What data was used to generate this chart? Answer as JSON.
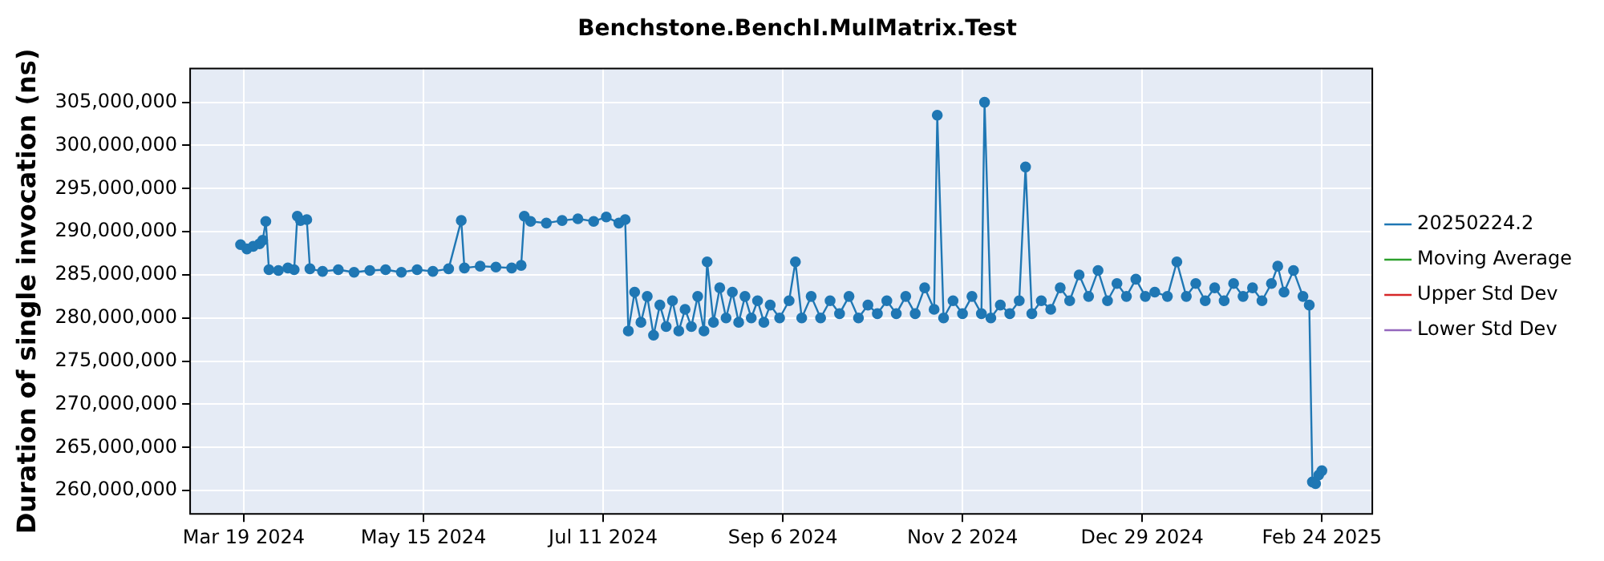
{
  "chart_data": {
    "type": "line",
    "title": "Benchstone.BenchI.MulMatrix.Test",
    "ylabel": "Duration of single invocation (ns)",
    "xlim": [
      "2024-03-02",
      "2025-03-12"
    ],
    "xticks": [
      {
        "value": "2024-03-19",
        "label": "Mar 19 2024"
      },
      {
        "value": "2024-05-15",
        "label": "May 15 2024"
      },
      {
        "value": "2024-07-11",
        "label": "Jul 11 2024"
      },
      {
        "value": "2024-09-06",
        "label": "Sep 6 2024"
      },
      {
        "value": "2024-11-02",
        "label": "Nov 2 2024"
      },
      {
        "value": "2024-12-29",
        "label": "Dec 29 2024"
      },
      {
        "value": "2025-02-24",
        "label": "Feb 24 2025"
      }
    ],
    "ylim": [
      257300000,
      308900000
    ],
    "yticks": [
      {
        "value": 260000000,
        "label": "260,000,000"
      },
      {
        "value": 265000000,
        "label": "265,000,000"
      },
      {
        "value": 270000000,
        "label": "270,000,000"
      },
      {
        "value": 275000000,
        "label": "275,000,000"
      },
      {
        "value": 280000000,
        "label": "280,000,000"
      },
      {
        "value": 285000000,
        "label": "285,000,000"
      },
      {
        "value": 290000000,
        "label": "290,000,000"
      },
      {
        "value": 295000000,
        "label": "295,000,000"
      },
      {
        "value": 300000000,
        "label": "300,000,000"
      },
      {
        "value": 305000000,
        "label": "305,000,000"
      }
    ],
    "grid": true,
    "legend": "right",
    "marker": "circle",
    "line_style": "solid",
    "series": [
      {
        "name": "20250224.2",
        "color": "#1f77b4",
        "x": [
          "2024-03-18",
          "2024-03-20",
          "2024-03-22",
          "2024-03-24",
          "2024-03-25",
          "2024-03-26",
          "2024-03-27",
          "2024-03-30",
          "2024-04-02",
          "2024-04-04",
          "2024-04-05",
          "2024-04-06",
          "2024-04-08",
          "2024-04-09",
          "2024-04-13",
          "2024-04-18",
          "2024-04-23",
          "2024-04-28",
          "2024-05-03",
          "2024-05-08",
          "2024-05-13",
          "2024-05-18",
          "2024-05-23",
          "2024-05-27",
          "2024-05-28",
          "2024-06-02",
          "2024-06-07",
          "2024-06-12",
          "2024-06-15",
          "2024-06-16",
          "2024-06-18",
          "2024-06-23",
          "2024-06-28",
          "2024-07-03",
          "2024-07-08",
          "2024-07-12",
          "2024-07-16",
          "2024-07-18",
          "2024-07-19",
          "2024-07-21",
          "2024-07-23",
          "2024-07-25",
          "2024-07-27",
          "2024-07-29",
          "2024-07-31",
          "2024-08-02",
          "2024-08-04",
          "2024-08-06",
          "2024-08-08",
          "2024-08-10",
          "2024-08-12",
          "2024-08-13",
          "2024-08-15",
          "2024-08-17",
          "2024-08-19",
          "2024-08-21",
          "2024-08-23",
          "2024-08-25",
          "2024-08-27",
          "2024-08-29",
          "2024-08-31",
          "2024-09-02",
          "2024-09-05",
          "2024-09-08",
          "2024-09-10",
          "2024-09-12",
          "2024-09-15",
          "2024-09-18",
          "2024-09-21",
          "2024-09-24",
          "2024-09-27",
          "2024-09-30",
          "2024-10-03",
          "2024-10-06",
          "2024-10-09",
          "2024-10-12",
          "2024-10-15",
          "2024-10-18",
          "2024-10-21",
          "2024-10-24",
          "2024-10-25",
          "2024-10-27",
          "2024-10-30",
          "2024-11-02",
          "2024-11-05",
          "2024-11-08",
          "2024-11-09",
          "2024-11-11",
          "2024-11-14",
          "2024-11-17",
          "2024-11-20",
          "2024-11-22",
          "2024-11-24",
          "2024-11-27",
          "2024-11-30",
          "2024-12-03",
          "2024-12-06",
          "2024-12-09",
          "2024-12-12",
          "2024-12-15",
          "2024-12-18",
          "2024-12-21",
          "2024-12-24",
          "2024-12-27",
          "2024-12-30",
          "2025-01-02",
          "2025-01-06",
          "2025-01-09",
          "2025-01-12",
          "2025-01-15",
          "2025-01-18",
          "2025-01-21",
          "2025-01-24",
          "2025-01-27",
          "2025-01-30",
          "2025-02-02",
          "2025-02-05",
          "2025-02-08",
          "2025-02-10",
          "2025-02-12",
          "2025-02-15",
          "2025-02-18",
          "2025-02-20",
          "2025-02-21",
          "2025-02-22",
          "2025-02-23",
          "2025-02-24"
        ],
        "values": [
          288500000,
          288000000,
          288300000,
          288600000,
          289000000,
          291200000,
          285600000,
          285500000,
          285800000,
          285600000,
          291800000,
          291300000,
          291400000,
          285700000,
          285400000,
          285600000,
          285300000,
          285500000,
          285600000,
          285300000,
          285600000,
          285400000,
          285700000,
          291300000,
          285800000,
          286000000,
          285900000,
          285800000,
          286100000,
          291800000,
          291200000,
          291000000,
          291300000,
          291500000,
          291200000,
          291700000,
          291000000,
          291400000,
          278500000,
          283000000,
          279500000,
          282500000,
          278000000,
          281500000,
          279000000,
          282000000,
          278500000,
          281000000,
          279000000,
          282500000,
          278500000,
          286500000,
          279500000,
          283500000,
          280000000,
          283000000,
          279500000,
          282500000,
          280000000,
          282000000,
          279500000,
          281500000,
          280000000,
          282000000,
          286500000,
          280000000,
          282500000,
          280000000,
          282000000,
          280500000,
          282500000,
          280000000,
          281500000,
          280500000,
          282000000,
          280500000,
          282500000,
          280500000,
          283500000,
          281000000,
          303500000,
          280000000,
          282000000,
          280500000,
          282500000,
          280500000,
          305000000,
          280000000,
          281500000,
          280500000,
          282000000,
          297500000,
          280500000,
          282000000,
          281000000,
          283500000,
          282000000,
          285000000,
          282500000,
          285500000,
          282000000,
          284000000,
          282500000,
          284500000,
          282500000,
          283000000,
          282500000,
          286500000,
          282500000,
          284000000,
          282000000,
          283500000,
          282000000,
          284000000,
          282500000,
          283500000,
          282000000,
          284000000,
          286000000,
          283000000,
          285500000,
          282500000,
          281500000,
          261000000,
          260800000,
          261800000,
          262300000
        ]
      },
      {
        "name": "Moving Average",
        "color": "#2ca02c"
      },
      {
        "name": "Upper Std Dev",
        "color": "#d62728"
      },
      {
        "name": "Lower Std Dev",
        "color": "#9467bd"
      }
    ]
  }
}
